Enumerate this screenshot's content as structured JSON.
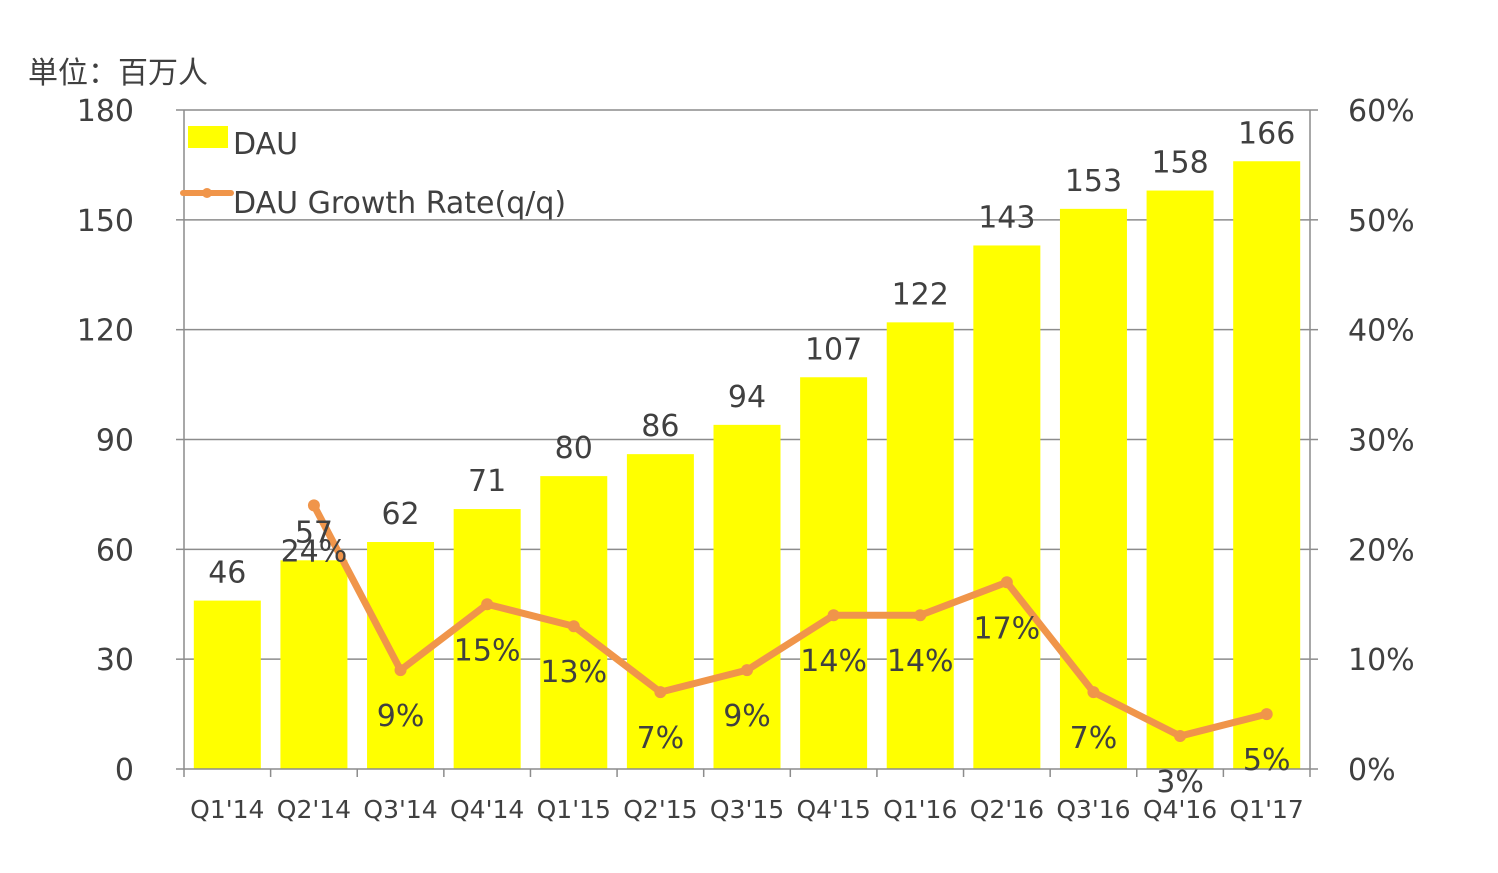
{
  "chart_data": {
    "type": "bar",
    "unit_label": "単位：百万人",
    "categories": [
      "Q1'14",
      "Q2'14",
      "Q3'14",
      "Q4'14",
      "Q1'15",
      "Q2'15",
      "Q3'15",
      "Q4'15",
      "Q1'16",
      "Q2'16",
      "Q3'16",
      "Q4'16",
      "Q1'17"
    ],
    "series": [
      {
        "name": "DAU",
        "type": "bar",
        "axis": "left",
        "color": "#FFFF00",
        "values": [
          46,
          57,
          62,
          71,
          80,
          86,
          94,
          107,
          122,
          143,
          153,
          158,
          166
        ],
        "labels": [
          "46",
          "57",
          "62",
          "71",
          "80",
          "86",
          "94",
          "107",
          "122",
          "143",
          "153",
          "158",
          "166"
        ]
      },
      {
        "name": "DAU Growth Rate(q/q)",
        "type": "line",
        "axis": "right",
        "color": "#F0954A",
        "values": [
          null,
          24,
          9,
          15,
          13,
          7,
          9,
          14,
          14,
          17,
          7,
          3,
          5
        ],
        "labels": [
          "",
          "24%",
          "9%",
          "15%",
          "13%",
          "7%",
          "9%",
          "14%",
          "14%",
          "17%",
          "7%",
          "3%",
          "5%"
        ]
      }
    ],
    "y_left": {
      "ylim": [
        0,
        180
      ],
      "ticks": [
        "0",
        "30",
        "60",
        "90",
        "120",
        "150",
        "180"
      ]
    },
    "y_right": {
      "ylim": [
        0,
        60
      ],
      "ticks": [
        "0%",
        "10%",
        "20%",
        "30%",
        "40%",
        "50%",
        "60%"
      ]
    },
    "grid": true,
    "legend": {
      "position": "top-left"
    }
  }
}
